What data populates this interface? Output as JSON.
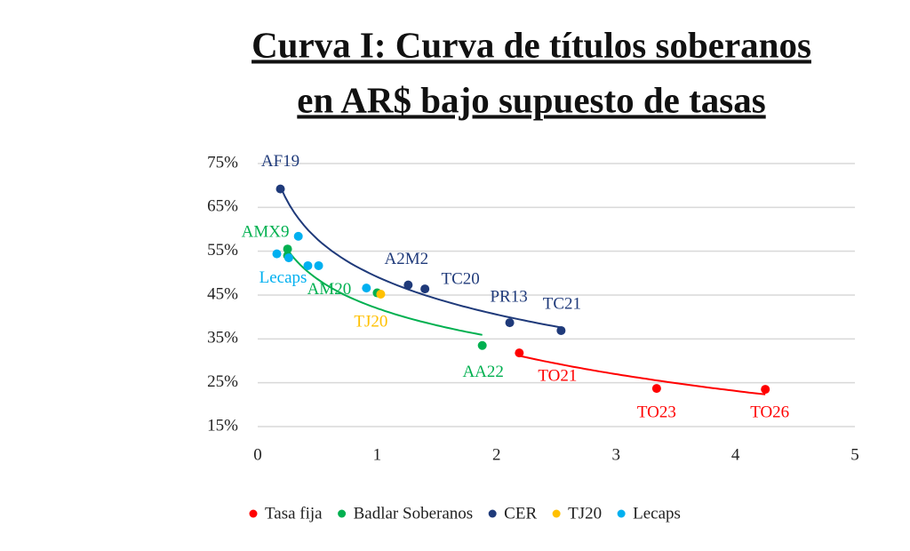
{
  "chart_data": {
    "type": "scatter",
    "title_lines": [
      "Curva I: Curva de títulos soberanos",
      "en AR$ bajo supuesto de tasas"
    ],
    "xlim": [
      0,
      5
    ],
    "xticks": [
      0,
      1,
      2,
      3,
      4,
      5
    ],
    "ylim": [
      15,
      75
    ],
    "yticks": [
      {
        "value": 15,
        "label": "15%"
      },
      {
        "value": 25,
        "label": "25%"
      },
      {
        "value": 35,
        "label": "35%"
      },
      {
        "value": 45,
        "label": "45%"
      },
      {
        "value": 55,
        "label": "55%"
      },
      {
        "value": 65,
        "label": "65%"
      },
      {
        "value": 75,
        "label": "75%"
      }
    ],
    "grid": true,
    "trendline": "log",
    "legend": "bottom",
    "series": [
      {
        "name": "Tasa fija",
        "color": "#ff0000",
        "trendline": true,
        "x": [
          2.19,
          3.34,
          4.25
        ],
        "values": [
          31.8,
          23.7,
          23.5
        ],
        "point_labels": [
          "TO21",
          "TO23",
          "TO26"
        ]
      },
      {
        "name": "Badlar Soberanos",
        "color": "#00b050",
        "trendline": true,
        "x": [
          0.25,
          0.25,
          1.0,
          1.88
        ],
        "values": [
          55.5,
          54,
          45.5,
          33.5
        ],
        "point_labels": [
          "AMX9",
          null,
          "AM20",
          "AA22"
        ]
      },
      {
        "name": "CER",
        "color": "#1f3a7a",
        "trendline": true,
        "x": [
          0.19,
          1.26,
          1.4,
          2.11,
          2.54
        ],
        "values": [
          69.2,
          47.3,
          46.4,
          38.7,
          36.9
        ],
        "point_labels": [
          "AF19",
          "A2M2",
          "TC20",
          "PR13",
          "TC21"
        ]
      },
      {
        "name": "TJ20",
        "color": "#ffc000",
        "trendline": false,
        "x": [
          1.03
        ],
        "values": [
          45.2
        ],
        "point_labels": [
          "TJ20"
        ]
      },
      {
        "name": "Lecaps",
        "color": "#00b0f0",
        "trendline": false,
        "x": [
          0.34,
          0.16,
          0.26,
          0.42,
          0.51,
          0.91
        ],
        "values": [
          58.4,
          54.4,
          53.5,
          51.7,
          51.7,
          46.6
        ],
        "point_labels": [
          null,
          "Lecaps",
          null,
          null,
          null,
          null
        ]
      }
    ]
  }
}
